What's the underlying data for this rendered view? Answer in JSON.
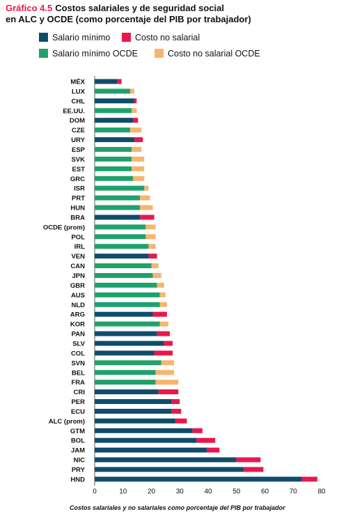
{
  "figure": {
    "label": "Gráfico 4.5",
    "title_line1": "Costos salariales y de seguridad social",
    "title_line2": "en ALC y OCDE (como porcentaje del PIB por trabajador)"
  },
  "colors": {
    "label": "#e8174d",
    "salario_alc": "#0f4c6b",
    "costo_alc": "#e8174d",
    "salario_ocde": "#1fa16b",
    "costo_ocde": "#f8b56e"
  },
  "chart_data": {
    "type": "bar",
    "orientation": "horizontal",
    "stacked": true,
    "xlabel": "Costos salariales y no salariales como porcentaje del PIB por trabajador",
    "xlim": [
      0,
      80
    ],
    "xticks": [
      0,
      10,
      20,
      30,
      40,
      50,
      60,
      70,
      80
    ],
    "grid": false,
    "legend": [
      {
        "name": "Salario mínimo",
        "color": "#0f4c6b"
      },
      {
        "name": "Costo no salarial",
        "color": "#e8174d"
      },
      {
        "name": "Salario mínimo OCDE",
        "color": "#1fa16b"
      },
      {
        "name": "Costo no salarial OCDE",
        "color": "#f8b56e"
      }
    ],
    "categories": [
      "MÉX",
      "LUX",
      "CHL",
      "EE.UU.",
      "DOM",
      "CZE",
      "URY",
      "ESP",
      "SVK",
      "EST",
      "GRC",
      "ISR",
      "PRT",
      "HUN",
      "BRA",
      "OCDE (prom)",
      "POL",
      "IRL",
      "VEN",
      "CAN",
      "JPN",
      "GBR",
      "AUS",
      "NLD",
      "ARG",
      "KOR",
      "PAN",
      "SLV",
      "COL",
      "SVN",
      "BEL",
      "FRA",
      "CRI",
      "PER",
      "ECU",
      "ALC (prom)",
      "GTM",
      "BOL",
      "JAM",
      "NIC",
      "PRY",
      "HND"
    ],
    "group": [
      "ALC",
      "OCDE",
      "ALC",
      "OCDE",
      "ALC",
      "OCDE",
      "ALC",
      "OCDE",
      "OCDE",
      "OCDE",
      "OCDE",
      "OCDE",
      "OCDE",
      "OCDE",
      "ALC",
      "OCDE",
      "OCDE",
      "OCDE",
      "ALC",
      "OCDE",
      "OCDE",
      "OCDE",
      "OCDE",
      "OCDE",
      "ALC",
      "OCDE",
      "ALC",
      "ALC",
      "ALC",
      "OCDE",
      "OCDE",
      "OCDE",
      "ALC",
      "ALC",
      "ALC",
      "ALC",
      "ALC",
      "ALC",
      "ALC",
      "ALC",
      "ALC",
      "ALC"
    ],
    "series": [
      {
        "name": "Salario mínimo",
        "values": [
          8,
          12.5,
          14,
          13,
          13.5,
          12.5,
          14,
          13,
          13,
          13,
          13.5,
          17.5,
          16,
          16,
          16,
          18,
          18,
          19,
          19,
          20,
          20.5,
          22,
          23,
          23,
          20.5,
          23,
          22,
          24.5,
          21,
          23.5,
          21.5,
          21.5,
          22.5,
          27,
          27,
          28.5,
          34.5,
          36,
          39.5,
          50,
          52.5,
          73
        ]
      },
      {
        "name": "Costo no salarial",
        "values": [
          1.5,
          1.5,
          0.8,
          1.8,
          1.8,
          4,
          3,
          3.5,
          4.5,
          4.5,
          4,
          1.5,
          3.5,
          4.5,
          5,
          3.5,
          3.5,
          2.5,
          3,
          2.5,
          3,
          2.5,
          2,
          2.5,
          5,
          3,
          4.5,
          3,
          6.5,
          4.5,
          6.5,
          8,
          7,
          3,
          3.5,
          4,
          3.5,
          6.5,
          4.5,
          8.5,
          7,
          5.5
        ]
      }
    ]
  }
}
